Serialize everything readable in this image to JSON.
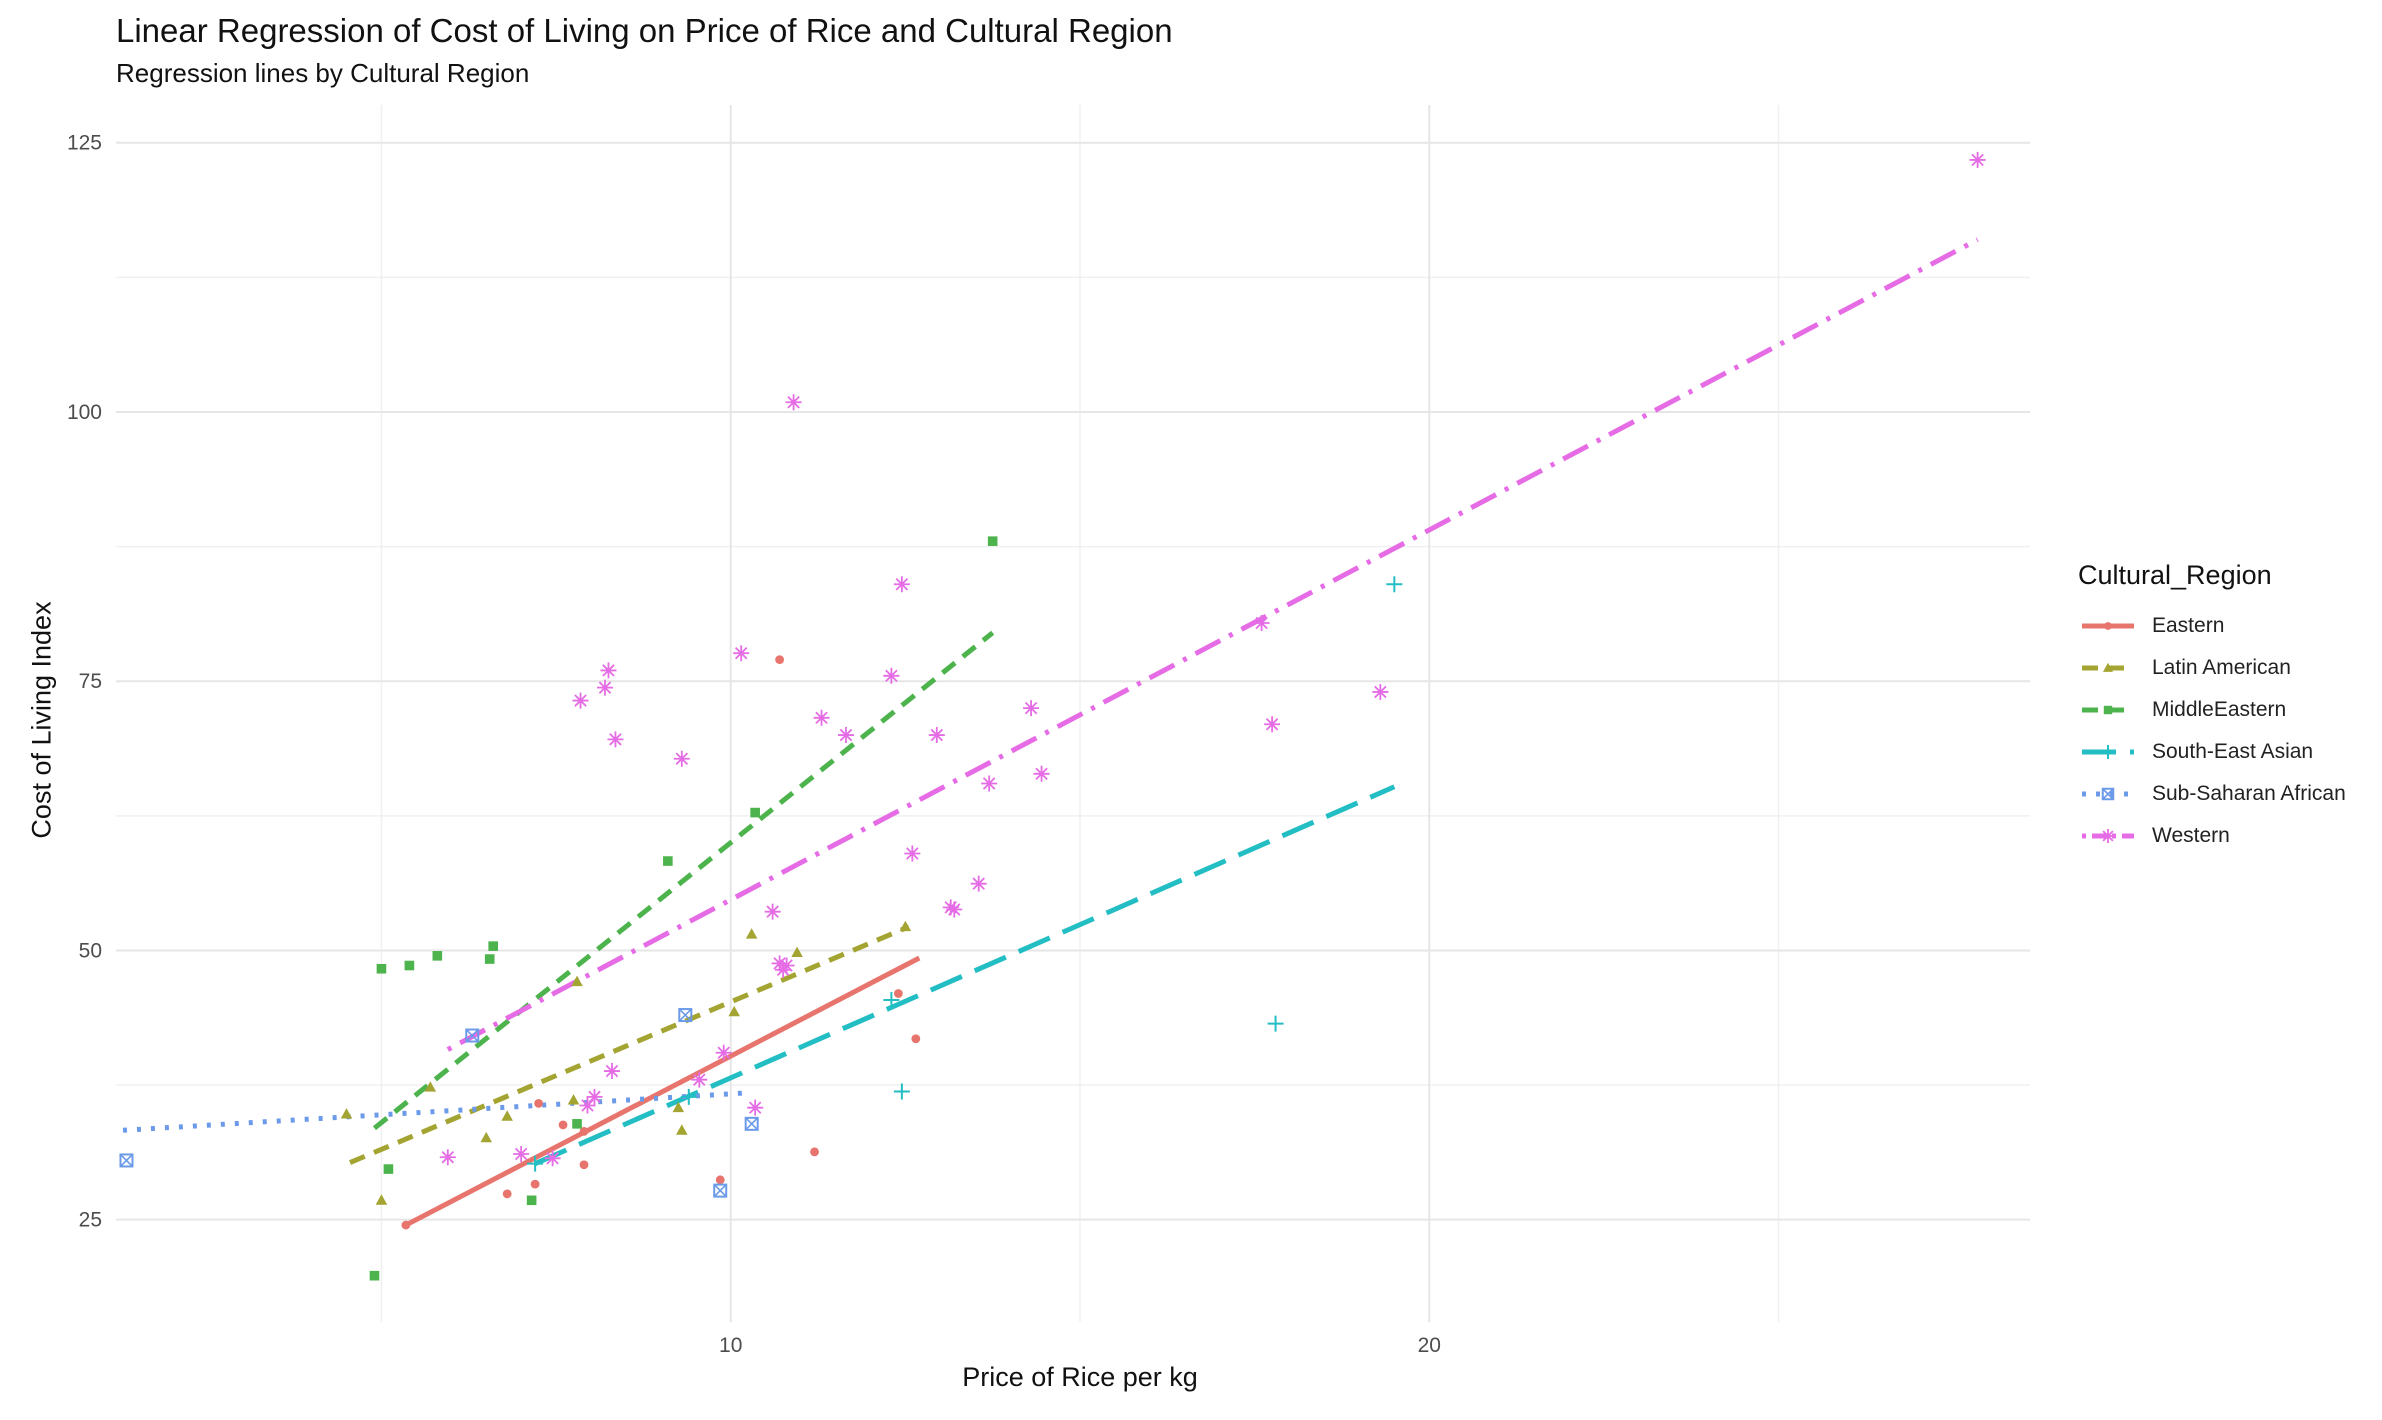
{
  "chart_data": {
    "type": "scatter",
    "title": "Linear Regression of Cost of Living on Price of Rice and Cultural Region",
    "subtitle": "Regression lines by Cultural Region",
    "xlabel": "Price of Rice per kg",
    "ylabel": "Cost of Living Index",
    "xlim": [
      1.2,
      28.6
    ],
    "ylim": [
      15.5,
      128.5
    ],
    "x_ticks": [
      10,
      20
    ],
    "x_minor_ticks": [
      5,
      15,
      25
    ],
    "y_ticks": [
      25,
      50,
      75,
      100,
      125
    ],
    "y_minor_ticks": [
      37.5,
      62.5,
      87.5,
      112.5
    ],
    "grid": true,
    "legend_title": "Cultural_Region",
    "legend_position": "right",
    "series": [
      {
        "name": "Eastern",
        "color": "#E7756D",
        "marker": "circle",
        "line_style": "solid",
        "fit": {
          "x": [
            5.35,
            12.7
          ],
          "y": [
            24.5,
            49.3
          ]
        },
        "points": [
          [
            5.35,
            24.5
          ],
          [
            6.8,
            27.4
          ],
          [
            7.2,
            28.3
          ],
          [
            7.25,
            35.8
          ],
          [
            7.6,
            33.8
          ],
          [
            7.9,
            33.2
          ],
          [
            7.9,
            30.1
          ],
          [
            9.85,
            28.7
          ],
          [
            10.7,
            77.0
          ],
          [
            11.2,
            31.3
          ],
          [
            12.4,
            46.0
          ],
          [
            12.65,
            41.8
          ]
        ]
      },
      {
        "name": "Latin American",
        "color": "#A3A431",
        "marker": "triangle",
        "line_style": "dashed",
        "fit": {
          "x": [
            4.55,
            12.55
          ],
          "y": [
            30.3,
            52.2
          ]
        },
        "points": [
          [
            4.5,
            34.8
          ],
          [
            5.0,
            26.8
          ],
          [
            5.7,
            37.3
          ],
          [
            6.5,
            32.6
          ],
          [
            6.8,
            34.6
          ],
          [
            7.75,
            36.1
          ],
          [
            7.8,
            47.1
          ],
          [
            9.25,
            35.4
          ],
          [
            9.3,
            33.3
          ],
          [
            10.05,
            44.3
          ],
          [
            10.3,
            51.5
          ],
          [
            10.95,
            49.8
          ],
          [
            12.5,
            52.2
          ]
        ]
      },
      {
        "name": "MiddleEastern",
        "color": "#4DB34C",
        "marker": "square",
        "line_style": "dashed",
        "fit": {
          "x": [
            4.9,
            13.75
          ],
          "y": [
            33.5,
            79.5
          ]
        },
        "points": [
          [
            4.9,
            19.8
          ],
          [
            5.0,
            48.3
          ],
          [
            5.1,
            29.7
          ],
          [
            5.4,
            48.6
          ],
          [
            5.8,
            49.5
          ],
          [
            6.55,
            49.2
          ],
          [
            6.6,
            50.4
          ],
          [
            7.15,
            26.8
          ],
          [
            7.8,
            33.9
          ],
          [
            9.1,
            58.3
          ],
          [
            10.35,
            62.8
          ],
          [
            13.75,
            88.0
          ]
        ]
      },
      {
        "name": "South-East Asian",
        "color": "#23BEC3",
        "marker": "plus",
        "line_style": "longdash",
        "fit": {
          "x": [
            7.2,
            19.5
          ],
          "y": [
            30.2,
            65.2
          ]
        },
        "points": [
          [
            7.2,
            30.2
          ],
          [
            9.4,
            36.4
          ],
          [
            12.3,
            45.4
          ],
          [
            12.45,
            36.9
          ],
          [
            17.8,
            43.2
          ],
          [
            19.5,
            84.0
          ]
        ]
      },
      {
        "name": "Sub-Saharan African",
        "color": "#6B9AE9",
        "marker": "square-x",
        "line_style": "dotted",
        "fit": {
          "x": [
            1.3,
            10.3
          ],
          "y": [
            33.3,
            36.8
          ]
        },
        "points": [
          [
            1.35,
            30.5
          ],
          [
            6.3,
            42.1
          ],
          [
            9.35,
            44.0
          ],
          [
            9.85,
            27.7
          ],
          [
            10.3,
            33.9
          ]
        ]
      },
      {
        "name": "Western",
        "color": "#E56CE5",
        "marker": "asterisk",
        "line_style": "dotdash",
        "fit": {
          "x": [
            5.95,
            27.85
          ],
          "y": [
            40.8,
            116.0
          ]
        },
        "points": [
          [
            5.95,
            30.8
          ],
          [
            7.0,
            31.1
          ],
          [
            7.45,
            30.7
          ],
          [
            7.85,
            73.2
          ],
          [
            7.95,
            35.6
          ],
          [
            8.05,
            36.4
          ],
          [
            8.2,
            74.4
          ],
          [
            8.25,
            76.0
          ],
          [
            8.3,
            38.8
          ],
          [
            8.35,
            69.6
          ],
          [
            9.3,
            67.8
          ],
          [
            9.55,
            38.0
          ],
          [
            9.9,
            40.5
          ],
          [
            10.15,
            77.6
          ],
          [
            10.35,
            35.4
          ],
          [
            10.6,
            53.6
          ],
          [
            10.7,
            48.8
          ],
          [
            10.75,
            48.2
          ],
          [
            10.8,
            48.6
          ],
          [
            10.9,
            100.9
          ],
          [
            11.3,
            71.6
          ],
          [
            11.65,
            70.0
          ],
          [
            12.3,
            75.5
          ],
          [
            12.45,
            84.0
          ],
          [
            12.6,
            59.0
          ],
          [
            12.95,
            70.0
          ],
          [
            13.15,
            54.0
          ],
          [
            13.2,
            53.8
          ],
          [
            13.55,
            56.2
          ],
          [
            13.7,
            65.5
          ],
          [
            14.3,
            72.5
          ],
          [
            14.45,
            66.4
          ],
          [
            17.6,
            80.4
          ],
          [
            17.75,
            71.0
          ],
          [
            19.3,
            74.0
          ],
          [
            27.85,
            123.4
          ]
        ]
      }
    ]
  }
}
